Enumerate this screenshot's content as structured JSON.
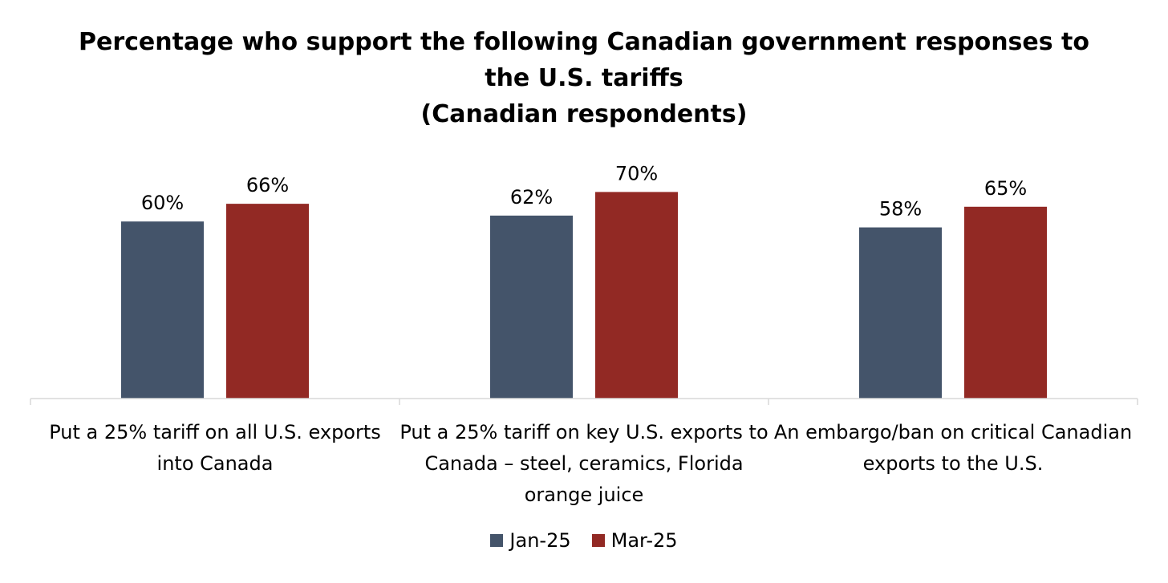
{
  "chart_data": {
    "type": "bar",
    "title_lines": [
      "Percentage who support the following Canadian government responses to",
      "the U.S. tariffs",
      "(Canadian respondents)"
    ],
    "categories": [
      "Put a 25% tariff on all U.S. exports into Canada",
      "Put a 25% tariff on key U.S. exports to Canada – steel, ceramics, Florida orange juice",
      "An embargo/ban on critical Canadian exports to the U.S."
    ],
    "series": [
      {
        "name": "Jan-25",
        "color": "#44546a",
        "values": [
          60,
          62,
          58
        ],
        "labels": [
          "60%",
          "62%",
          "58%"
        ]
      },
      {
        "name": "Mar-25",
        "color": "#922924",
        "values": [
          66,
          70,
          65
        ],
        "labels": [
          "66%",
          "70%",
          "65%"
        ]
      }
    ],
    "ylim": [
      0,
      100
    ],
    "xlabel": "",
    "ylabel": "",
    "grid": false,
    "legend_position": "bottom"
  }
}
